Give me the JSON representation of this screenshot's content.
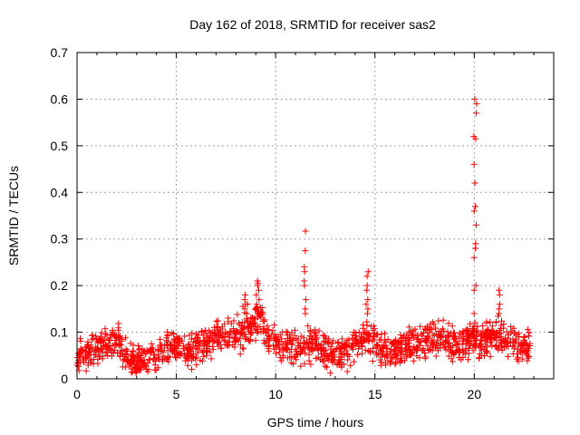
{
  "chart_data": {
    "type": "scatter",
    "title": "Day 162 of 2018, SRMTID for receiver sas2",
    "xlabel": "GPS time / hours",
    "ylabel": "SRMTID / TECUs",
    "xlim": [
      0,
      24
    ],
    "ylim": [
      0,
      0.7
    ],
    "xticks": [
      0,
      5,
      10,
      15,
      20
    ],
    "yticks": [
      0,
      0.1,
      0.2,
      0.3,
      0.4,
      0.5,
      0.6,
      0.7
    ],
    "xtick_labels": [
      "0",
      "5",
      "10",
      "15",
      "20"
    ],
    "ytick_labels": [
      "0",
      "0.1",
      "0.2",
      "0.3",
      "0.4",
      "0.5",
      "0.6",
      "0.7"
    ],
    "grid": true,
    "marker": "+",
    "marker_color": "#ff0000",
    "series": [
      {
        "name": "SRMTID",
        "baseline_profile": {
          "x": [
            0,
            0.5,
            1.0,
            1.5,
            2.0,
            2.5,
            3.0,
            3.5,
            4.0,
            4.5,
            5.0,
            5.5,
            6.0,
            6.5,
            7.0,
            7.5,
            8.0,
            8.5,
            9.0,
            9.3,
            9.5,
            10.0,
            10.5,
            11.0,
            11.5,
            12.0,
            12.5,
            13.0,
            13.5,
            14.0,
            14.5,
            15.0,
            15.5,
            16.0,
            16.5,
            17.0,
            17.5,
            18.0,
            18.5,
            19.0,
            19.5,
            20.0,
            20.5,
            21.0,
            21.5,
            22.0,
            22.5,
            22.8
          ],
          "y": [
            0.05,
            0.06,
            0.06,
            0.07,
            0.08,
            0.05,
            0.03,
            0.04,
            0.05,
            0.07,
            0.07,
            0.05,
            0.07,
            0.08,
            0.09,
            0.1,
            0.09,
            0.11,
            0.12,
            0.13,
            0.08,
            0.08,
            0.07,
            0.06,
            0.07,
            0.08,
            0.06,
            0.05,
            0.06,
            0.07,
            0.09,
            0.08,
            0.06,
            0.06,
            0.07,
            0.08,
            0.08,
            0.09,
            0.08,
            0.08,
            0.08,
            0.09,
            0.08,
            0.1,
            0.08,
            0.08,
            0.07,
            0.07
          ],
          "spread": 0.025
        },
        "peaks": [
          {
            "x": 9.1,
            "y": [
              0.21,
              0.205,
              0.2,
              0.19,
              0.18,
              0.17,
              0.16,
              0.15
            ]
          },
          {
            "x": 11.5,
            "y": [
              0.317,
              0.275,
              0.24,
              0.23,
              0.21,
              0.2,
              0.17,
              0.15,
              0.14
            ]
          },
          {
            "x": 14.6,
            "y": [
              0.23,
              0.22,
              0.2,
              0.19,
              0.17,
              0.16,
              0.15,
              0.14
            ]
          },
          {
            "x": 20.05,
            "y": [
              0.6,
              0.59,
              0.57,
              0.52,
              0.515,
              0.46,
              0.42,
              0.37,
              0.36,
              0.33,
              0.29,
              0.28,
              0.26,
              0.2,
              0.19,
              0.14
            ]
          },
          {
            "x": 21.3,
            "y": [
              0.19,
              0.18,
              0.16,
              0.15,
              0.14
            ]
          },
          {
            "x": 8.5,
            "y": [
              0.18,
              0.17,
              0.16,
              0.15,
              0.14
            ]
          }
        ]
      }
    ]
  }
}
